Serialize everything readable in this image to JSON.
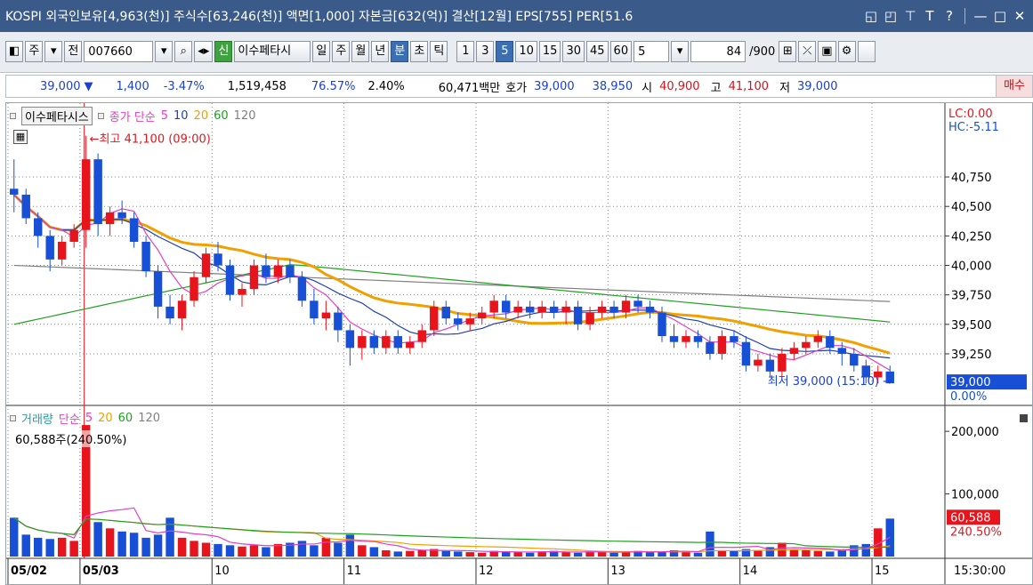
{
  "titlebar": {
    "text": "KOSPI 외국인보유[4,963(천)] 주식수[63,246(천)] 액면[1,000] 자본금[632(억)] 결산[12월] EPS[755] PER[51.6",
    "icons": [
      "restore-icon",
      "window-icon",
      "pin-icon",
      "font-icon",
      "help-icon"
    ],
    "help": "?",
    "font": "T"
  },
  "toolbar": {
    "period_label": "주",
    "all_label": "전",
    "code": "007660",
    "new_badge": "신",
    "stock_name": "이수페타시",
    "tabs": [
      "일",
      "주",
      "월",
      "년",
      "분",
      "초",
      "틱"
    ],
    "active_tab": "분",
    "intervals": [
      "1",
      "3",
      "5",
      "10",
      "15",
      "30",
      "45",
      "60"
    ],
    "active_interval": "5",
    "interval_value": "5",
    "count_value": "84",
    "count_total": "/900"
  },
  "info": {
    "price": "39,000",
    "change": "1,400",
    "change_pct": "-3.47%",
    "volume": "1,519,458",
    "ratio1": "76.57%",
    "ratio2": "2.40%",
    "amount": "60,471백만",
    "quote_label": "호가",
    "ask": "39,000",
    "bid": "38,950",
    "open_label": "시",
    "open": "40,900",
    "high_label": "고",
    "high": "41,100",
    "low_label": "저",
    "low": "39,000",
    "buy_label": "매수"
  },
  "chart_data": [
    {
      "type": "candlestick",
      "legend": {
        "name": "이수페타시스",
        "title": "종가 단순",
        "periods": [
          "5",
          "10",
          "20",
          "60",
          "120"
        ]
      },
      "ylim": [
        38850,
        41150
      ],
      "y_ticks": [
        "40,750",
        "40,500",
        "40,250",
        "40,000",
        "39,750",
        "39,500",
        "39,250"
      ],
      "lc_label": "LC:0.00",
      "hc_label": "HC:-5.11",
      "current_price_label": "39,000",
      "current_pct_label": "0.00%",
      "annotations": [
        {
          "text": "←최고 41,100 (09:00)",
          "x_index": 6,
          "y": 41100
        },
        {
          "text": "최저 39,000 (15:10) →",
          "x_index": 76,
          "y": 39000
        }
      ],
      "colors": {
        "up": "#e8141c",
        "down": "#1750d6",
        "ma5": "#e040c8",
        "ma10": "#2040b0",
        "ma20": "#f0a000",
        "ma60": "#20a020",
        "ma120": "#808080"
      },
      "candles": [
        [
          40650,
          40900,
          40450,
          40600
        ],
        [
          40600,
          40650,
          40350,
          40400
        ],
        [
          40400,
          40450,
          40150,
          40250
        ],
        [
          40250,
          40300,
          39950,
          40050
        ],
        [
          40050,
          40250,
          40000,
          40200
        ],
        [
          40200,
          40350,
          40150,
          40300
        ],
        [
          40300,
          41100,
          40150,
          40900
        ],
        [
          40900,
          40950,
          40250,
          40350
        ],
        [
          40350,
          40500,
          40250,
          40450
        ],
        [
          40450,
          40550,
          40350,
          40400
        ],
        [
          40400,
          40450,
          40150,
          40200
        ],
        [
          40200,
          40250,
          39900,
          39950
        ],
        [
          39950,
          40000,
          39550,
          39650
        ],
        [
          39650,
          39750,
          39500,
          39550
        ],
        [
          39550,
          39750,
          39450,
          39700
        ],
        [
          39700,
          39950,
          39650,
          39900
        ],
        [
          39900,
          40150,
          39850,
          40100
        ],
        [
          40100,
          40200,
          39950,
          40000
        ],
        [
          40000,
          40050,
          39700,
          39750
        ],
        [
          39750,
          39850,
          39650,
          39800
        ],
        [
          39800,
          40050,
          39750,
          40000
        ],
        [
          40000,
          40100,
          39850,
          39900
        ],
        [
          39900,
          40050,
          39850,
          40000
        ],
        [
          40000,
          40050,
          39850,
          39900
        ],
        [
          39900,
          39950,
          39650,
          39700
        ],
        [
          39700,
          39800,
          39500,
          39550
        ],
        [
          39550,
          39700,
          39450,
          39600
        ],
        [
          39600,
          39650,
          39350,
          39450
        ],
        [
          39450,
          39500,
          39150,
          39300
        ],
        [
          39300,
          39450,
          39200,
          39400
        ],
        [
          39400,
          39450,
          39250,
          39300
        ],
        [
          39300,
          39450,
          39250,
          39400
        ],
        [
          39400,
          39450,
          39250,
          39300
        ],
        [
          39300,
          39400,
          39250,
          39350
        ],
        [
          39350,
          39500,
          39300,
          39450
        ],
        [
          39450,
          39700,
          39400,
          39650
        ],
        [
          39650,
          39700,
          39500,
          39550
        ],
        [
          39550,
          39600,
          39450,
          39500
        ],
        [
          39500,
          39600,
          39450,
          39550
        ],
        [
          39550,
          39650,
          39500,
          39600
        ],
        [
          39600,
          39750,
          39550,
          39700
        ],
        [
          39700,
          39750,
          39550,
          39600
        ],
        [
          39600,
          39700,
          39550,
          39650
        ],
        [
          39650,
          39700,
          39550,
          39600
        ],
        [
          39600,
          39700,
          39550,
          39650
        ],
        [
          39650,
          39700,
          39550,
          39600
        ],
        [
          39600,
          39700,
          39500,
          39650
        ],
        [
          39650,
          39700,
          39450,
          39500
        ],
        [
          39500,
          39650,
          39450,
          39600
        ],
        [
          39600,
          39700,
          39550,
          39650
        ],
        [
          39650,
          39700,
          39550,
          39600
        ],
        [
          39600,
          39750,
          39550,
          39700
        ],
        [
          39700,
          39750,
          39600,
          39650
        ],
        [
          39650,
          39700,
          39550,
          39600
        ],
        [
          39600,
          39650,
          39350,
          39400
        ],
        [
          39400,
          39500,
          39300,
          39350
        ],
        [
          39350,
          39450,
          39300,
          39400
        ],
        [
          39400,
          39450,
          39300,
          39350
        ],
        [
          39350,
          39400,
          39200,
          39250
        ],
        [
          39250,
          39450,
          39200,
          39400
        ],
        [
          39400,
          39450,
          39300,
          39350
        ],
        [
          39350,
          39400,
          39100,
          39150
        ],
        [
          39150,
          39250,
          39100,
          39200
        ],
        [
          39200,
          39250,
          39050,
          39100
        ],
        [
          39100,
          39300,
          39050,
          39250
        ],
        [
          39250,
          39350,
          39200,
          39300
        ],
        [
          39300,
          39400,
          39250,
          39350
        ],
        [
          39350,
          39450,
          39300,
          39400
        ],
        [
          39400,
          39450,
          39250,
          39300
        ],
        [
          39300,
          39350,
          39150,
          39250
        ],
        [
          39250,
          39300,
          39100,
          39150
        ],
        [
          39150,
          39200,
          39000,
          39050
        ],
        [
          39050,
          39150,
          39000,
          39100
        ],
        [
          39100,
          39150,
          39000,
          39000
        ]
      ],
      "x_labels": [
        {
          "text": "05/02",
          "index": 0
        },
        {
          "text": "05/03",
          "index": 6
        },
        {
          "text": "10",
          "index": 17
        },
        {
          "text": "11",
          "index": 28
        },
        {
          "text": "12",
          "index": 39
        },
        {
          "text": "13",
          "index": 50
        },
        {
          "text": "14",
          "index": 61
        },
        {
          "text": "15",
          "index": 72
        }
      ],
      "x_end_label": "15:30:00"
    },
    {
      "type": "bar",
      "legend": {
        "name": "거래량",
        "title": "단순",
        "periods": [
          "5",
          "20",
          "60",
          "120"
        ]
      },
      "readout": "60,588주(240.50%)",
      "ylim": [
        0,
        230000
      ],
      "y_ticks": [
        "200,000",
        "100,000"
      ],
      "current_label": "60,588",
      "current_pct_label": "240.50%",
      "values": [
        62000,
        35000,
        30000,
        28000,
        30000,
        25000,
        210000,
        55000,
        45000,
        40000,
        38000,
        30000,
        35000,
        62000,
        30000,
        25000,
        22000,
        20000,
        18000,
        16000,
        18000,
        15000,
        20000,
        22000,
        25000,
        18000,
        30000,
        22000,
        35000,
        18000,
        15000,
        10000,
        8000,
        9000,
        10000,
        12000,
        9000,
        8000,
        7000,
        6000,
        9000,
        8000,
        7000,
        6000,
        8000,
        9000,
        7000,
        6000,
        8000,
        7000,
        6000,
        8000,
        9000,
        7000,
        8000,
        10000,
        8000,
        6000,
        40000,
        10000,
        9000,
        12000,
        10000,
        15000,
        22000,
        12000,
        10000,
        9000,
        8000,
        10000,
        18000,
        20000,
        45000,
        60588
      ]
    }
  ]
}
